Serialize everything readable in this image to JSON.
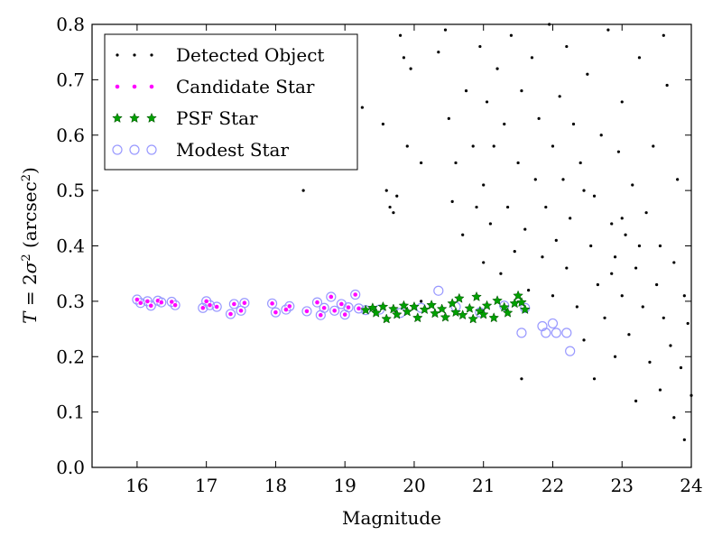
{
  "chart_data": {
    "type": "scatter",
    "title": "",
    "xlabel": "Magnitude",
    "ylabel": {
      "prefix": "T",
      "equals": " = 2",
      "sigma": "σ",
      "power": "2",
      "unit_open": " (arcsec",
      "unit_power": "2",
      "unit_close": ")"
    },
    "xlim": [
      15.35,
      24.0
    ],
    "ylim": [
      0.0,
      0.8
    ],
    "xticks": [
      "16",
      "17",
      "18",
      "19",
      "20",
      "21",
      "22",
      "23",
      "24"
    ],
    "yticks": [
      "0.0",
      "0.1",
      "0.2",
      "0.3",
      "0.4",
      "0.5",
      "0.6",
      "0.7",
      "0.8"
    ],
    "grid": false,
    "legend_position": "top-left",
    "series": [
      {
        "name": "Detected Object",
        "marker": "dot",
        "color": "#000000",
        "points": [
          [
            18.4,
            0.5
          ],
          [
            19.25,
            0.65
          ],
          [
            19.55,
            0.62
          ],
          [
            19.6,
            0.5
          ],
          [
            19.65,
            0.47
          ],
          [
            19.7,
            0.46
          ],
          [
            19.75,
            0.49
          ],
          [
            19.8,
            0.78
          ],
          [
            19.85,
            0.74
          ],
          [
            19.9,
            0.58
          ],
          [
            19.95,
            0.72
          ],
          [
            20.1,
            0.55
          ],
          [
            20.1,
            0.3
          ],
          [
            20.35,
            0.75
          ],
          [
            20.45,
            0.79
          ],
          [
            20.5,
            0.63
          ],
          [
            20.55,
            0.48
          ],
          [
            20.6,
            0.55
          ],
          [
            20.7,
            0.42
          ],
          [
            20.75,
            0.68
          ],
          [
            20.85,
            0.58
          ],
          [
            20.9,
            0.47
          ],
          [
            20.95,
            0.76
          ],
          [
            21.0,
            0.51
          ],
          [
            21.0,
            0.37
          ],
          [
            21.05,
            0.66
          ],
          [
            21.1,
            0.44
          ],
          [
            21.15,
            0.58
          ],
          [
            21.2,
            0.72
          ],
          [
            21.25,
            0.35
          ],
          [
            21.3,
            0.62
          ],
          [
            21.35,
            0.47
          ],
          [
            21.4,
            0.78
          ],
          [
            21.45,
            0.39
          ],
          [
            21.5,
            0.55
          ],
          [
            21.55,
            0.68
          ],
          [
            21.55,
            0.16
          ],
          [
            21.6,
            0.43
          ],
          [
            21.65,
            0.32
          ],
          [
            21.7,
            0.74
          ],
          [
            21.75,
            0.52
          ],
          [
            21.8,
            0.63
          ],
          [
            21.85,
            0.38
          ],
          [
            21.9,
            0.47
          ],
          [
            21.95,
            0.8
          ],
          [
            22.0,
            0.58
          ],
          [
            22.0,
            0.31
          ],
          [
            22.05,
            0.41
          ],
          [
            22.1,
            0.67
          ],
          [
            22.15,
            0.52
          ],
          [
            22.2,
            0.36
          ],
          [
            22.2,
            0.76
          ],
          [
            22.25,
            0.45
          ],
          [
            22.3,
            0.62
          ],
          [
            22.35,
            0.29
          ],
          [
            22.4,
            0.55
          ],
          [
            22.45,
            0.23
          ],
          [
            22.5,
            0.71
          ],
          [
            22.55,
            0.4
          ],
          [
            22.6,
            0.49
          ],
          [
            22.65,
            0.33
          ],
          [
            22.7,
            0.6
          ],
          [
            22.75,
            0.27
          ],
          [
            22.8,
            0.79
          ],
          [
            22.85,
            0.44
          ],
          [
            22.9,
            0.38
          ],
          [
            22.95,
            0.57
          ],
          [
            23.0,
            0.31
          ],
          [
            23.0,
            0.66
          ],
          [
            23.05,
            0.42
          ],
          [
            23.1,
            0.24
          ],
          [
            23.15,
            0.51
          ],
          [
            23.2,
            0.36
          ],
          [
            23.25,
            0.74
          ],
          [
            23.3,
            0.29
          ],
          [
            23.35,
            0.46
          ],
          [
            23.4,
            0.19
          ],
          [
            23.45,
            0.58
          ],
          [
            23.5,
            0.33
          ],
          [
            23.55,
            0.4
          ],
          [
            23.6,
            0.27
          ],
          [
            23.65,
            0.69
          ],
          [
            23.7,
            0.22
          ],
          [
            23.75,
            0.37
          ],
          [
            23.8,
            0.52
          ],
          [
            23.85,
            0.18
          ],
          [
            23.9,
            0.31
          ],
          [
            23.95,
            0.26
          ],
          [
            24.0,
            0.13
          ],
          [
            23.9,
            0.05
          ],
          [
            23.75,
            0.09
          ],
          [
            23.55,
            0.14
          ],
          [
            23.2,
            0.12
          ],
          [
            22.9,
            0.2
          ],
          [
            22.6,
            0.16
          ],
          [
            23.6,
            0.78
          ],
          [
            23.0,
            0.45
          ],
          [
            22.85,
            0.35
          ],
          [
            23.25,
            0.4
          ],
          [
            22.45,
            0.5
          ]
        ]
      },
      {
        "name": "Candidate Star",
        "marker": "small-circle",
        "color": "#ff00ff",
        "points": [
          [
            16.0,
            0.303
          ],
          [
            16.05,
            0.297
          ],
          [
            16.15,
            0.3
          ],
          [
            16.2,
            0.292
          ],
          [
            16.3,
            0.301
          ],
          [
            16.35,
            0.298
          ],
          [
            16.5,
            0.299
          ],
          [
            16.55,
            0.293
          ],
          [
            16.95,
            0.288
          ],
          [
            17.0,
            0.3
          ],
          [
            17.05,
            0.293
          ],
          [
            17.15,
            0.29
          ],
          [
            17.35,
            0.277
          ],
          [
            17.4,
            0.295
          ],
          [
            17.5,
            0.283
          ],
          [
            17.55,
            0.297
          ],
          [
            17.95,
            0.296
          ],
          [
            18.0,
            0.28
          ],
          [
            18.15,
            0.285
          ],
          [
            18.2,
            0.291
          ],
          [
            18.45,
            0.282
          ],
          [
            18.6,
            0.298
          ],
          [
            18.65,
            0.275
          ],
          [
            18.7,
            0.288
          ],
          [
            18.8,
            0.308
          ],
          [
            18.85,
            0.283
          ],
          [
            18.95,
            0.295
          ],
          [
            19.0,
            0.276
          ],
          [
            19.05,
            0.289
          ],
          [
            19.15,
            0.312
          ],
          [
            19.2,
            0.287
          ],
          [
            19.3,
            0.284
          ]
        ]
      },
      {
        "name": "PSF Star",
        "marker": "star",
        "color": "#00a000",
        "points": [
          [
            19.3,
            0.284
          ],
          [
            19.4,
            0.288
          ],
          [
            19.45,
            0.279
          ],
          [
            19.55,
            0.29
          ],
          [
            19.6,
            0.268
          ],
          [
            19.7,
            0.286
          ],
          [
            19.75,
            0.276
          ],
          [
            19.85,
            0.292
          ],
          [
            19.9,
            0.281
          ],
          [
            20.0,
            0.29
          ],
          [
            20.05,
            0.27
          ],
          [
            20.15,
            0.285
          ],
          [
            20.25,
            0.293
          ],
          [
            20.3,
            0.278
          ],
          [
            20.4,
            0.286
          ],
          [
            20.45,
            0.271
          ],
          [
            20.55,
            0.296
          ],
          [
            20.6,
            0.28
          ],
          [
            20.65,
            0.305
          ],
          [
            20.7,
            0.275
          ],
          [
            20.8,
            0.287
          ],
          [
            20.85,
            0.268
          ],
          [
            20.9,
            0.308
          ],
          [
            20.95,
            0.282
          ],
          [
            21.0,
            0.276
          ],
          [
            21.05,
            0.292
          ],
          [
            21.15,
            0.27
          ],
          [
            21.2,
            0.301
          ],
          [
            21.3,
            0.289
          ],
          [
            21.35,
            0.279
          ],
          [
            21.45,
            0.296
          ],
          [
            21.5,
            0.31
          ],
          [
            21.55,
            0.298
          ],
          [
            21.6,
            0.285
          ]
        ]
      },
      {
        "name": "Modest Star",
        "marker": "open-circle",
        "color": "#9999ff",
        "points": [
          [
            16.0,
            0.303
          ],
          [
            16.05,
            0.297
          ],
          [
            16.15,
            0.3
          ],
          [
            16.2,
            0.292
          ],
          [
            16.3,
            0.301
          ],
          [
            16.35,
            0.298
          ],
          [
            16.5,
            0.299
          ],
          [
            16.55,
            0.293
          ],
          [
            16.95,
            0.288
          ],
          [
            17.0,
            0.3
          ],
          [
            17.05,
            0.293
          ],
          [
            17.15,
            0.29
          ],
          [
            17.35,
            0.277
          ],
          [
            17.4,
            0.295
          ],
          [
            17.5,
            0.283
          ],
          [
            17.55,
            0.297
          ],
          [
            17.95,
            0.296
          ],
          [
            18.0,
            0.28
          ],
          [
            18.15,
            0.285
          ],
          [
            18.2,
            0.291
          ],
          [
            18.45,
            0.282
          ],
          [
            18.6,
            0.298
          ],
          [
            18.65,
            0.275
          ],
          [
            18.7,
            0.288
          ],
          [
            18.8,
            0.308
          ],
          [
            18.85,
            0.283
          ],
          [
            18.95,
            0.295
          ],
          [
            19.0,
            0.276
          ],
          [
            19.05,
            0.289
          ],
          [
            19.15,
            0.312
          ],
          [
            19.2,
            0.287
          ],
          [
            19.3,
            0.284
          ],
          [
            19.5,
            0.285
          ],
          [
            19.8,
            0.279
          ],
          [
            20.1,
            0.288
          ],
          [
            20.35,
            0.319
          ],
          [
            20.6,
            0.29
          ],
          [
            20.95,
            0.28
          ],
          [
            21.3,
            0.292
          ],
          [
            21.55,
            0.243
          ],
          [
            21.6,
            0.288
          ],
          [
            21.85,
            0.255
          ],
          [
            21.9,
            0.243
          ],
          [
            22.0,
            0.26
          ],
          [
            22.05,
            0.243
          ],
          [
            22.2,
            0.243
          ],
          [
            22.25,
            0.21
          ]
        ]
      }
    ]
  }
}
